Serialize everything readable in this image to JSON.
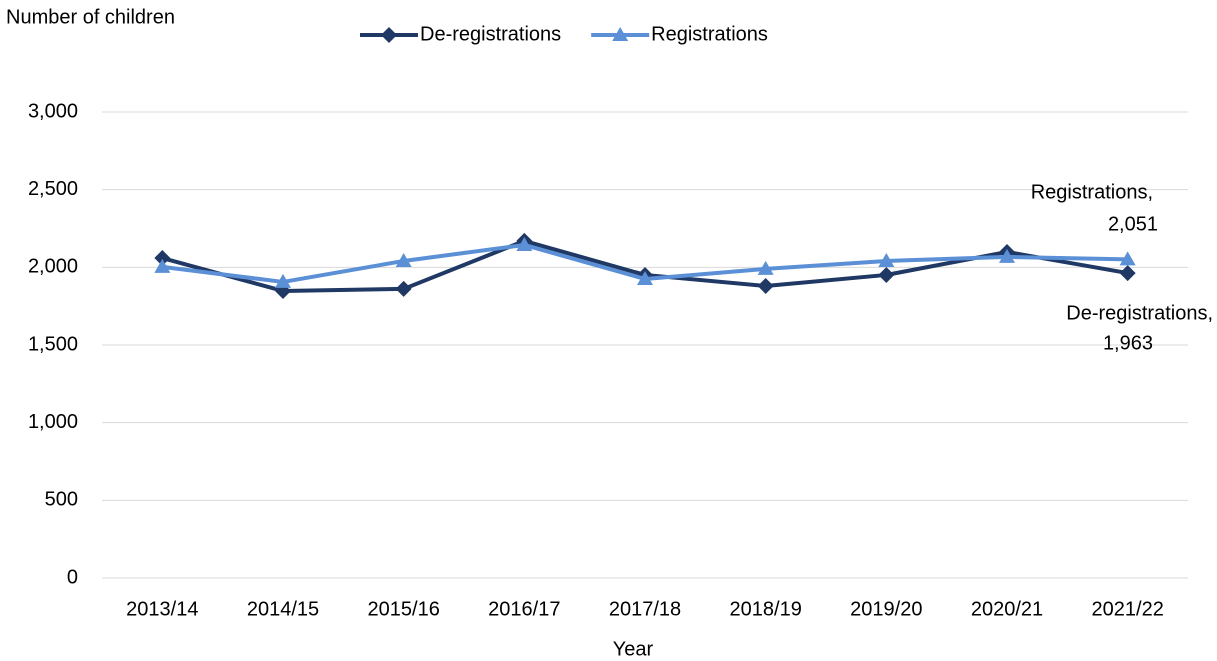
{
  "chart_data": {
    "type": "line",
    "y_axis_title": "Number of children",
    "x_axis_title": "Year",
    "categories": [
      "2013/14",
      "2014/15",
      "2015/16",
      "2016/17",
      "2017/18",
      "2018/19",
      "2019/20",
      "2020/21",
      "2021/22"
    ],
    "series": [
      {
        "name": "De-registrations",
        "color": "#1f3864",
        "marker": "diamond",
        "values": [
          2060,
          1848,
          1861,
          2170,
          1951,
          1880,
          1951,
          2099,
          1963
        ],
        "label_name": "De-registrations,",
        "value_labels": [
          null,
          null,
          null,
          null,
          null,
          null,
          null,
          null,
          "1,963"
        ]
      },
      {
        "name": "Registrations",
        "color": "#5b8fd6",
        "marker": "triangle",
        "values": [
          2003,
          1906,
          2041,
          2144,
          1925,
          1990,
          2041,
          2067,
          2051
        ],
        "label_name": "Registrations,",
        "value_labels": [
          null,
          null,
          null,
          null,
          null,
          null,
          null,
          null,
          "2,051"
        ]
      }
    ],
    "ylim": [
      0,
      3000
    ],
    "yticks": [
      0,
      {
        "value": 500,
        "label": "500"
      },
      {
        "value": 1000,
        "label": "1,000"
      },
      {
        "value": 1500,
        "label": "1,500"
      },
      {
        "value": 2000,
        "label": "2,000"
      },
      {
        "value": 2500,
        "label": "2,500"
      },
      {
        "value": 3000,
        "label": "3,000"
      }
    ],
    "grid": true,
    "legend": "top"
  }
}
